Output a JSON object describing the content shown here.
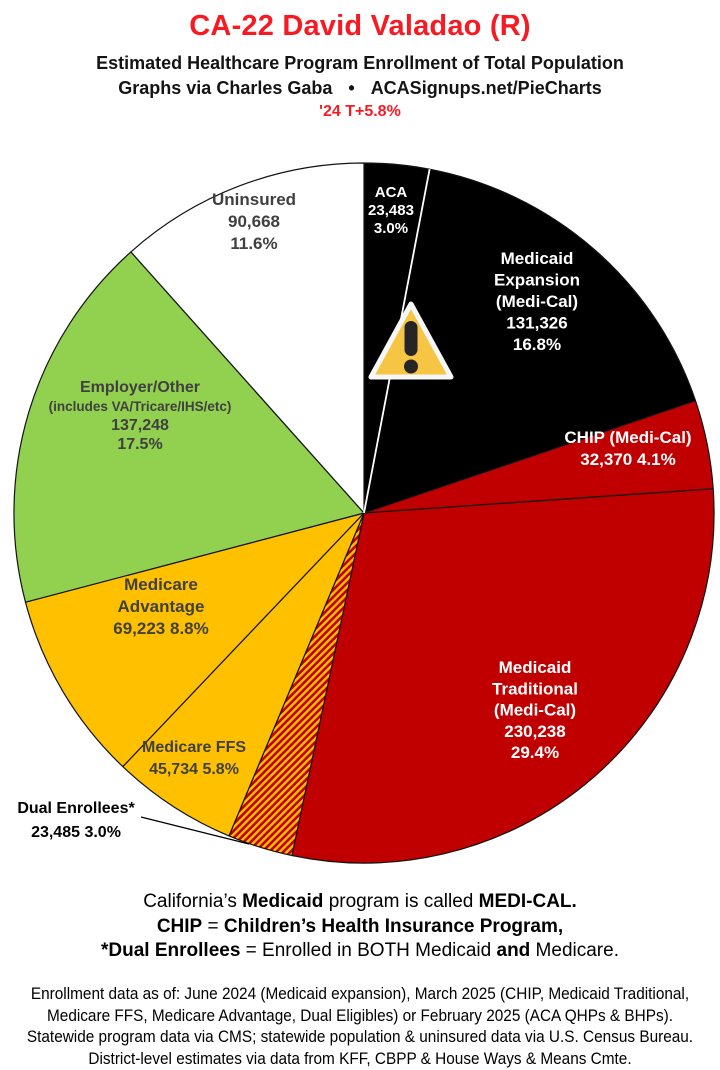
{
  "header": {
    "title": "CA-22 David Valadao (R)",
    "subtitle": "Estimated Healthcare Program Enrollment of Total Population",
    "byline_left": "Graphs via Charles Gaba",
    "byline_sep": "•",
    "byline_right": "ACASignups.net/PieCharts",
    "trend": "'24 T+5.8%"
  },
  "colors": {
    "accent_red": "#F71A22",
    "pie_red": "#C00000",
    "pie_gold": "#FFC000",
    "pie_green": "#92D050",
    "pie_black": "#000000",
    "pie_white": "#FFFFFF",
    "label_gray": "#404040",
    "warning_fill": "#F6C544"
  },
  "chart_data": {
    "type": "pie",
    "title": "Estimated Healthcare Program Enrollment of Total Population",
    "start_angle_deg": 0,
    "direction": "clockwise",
    "slices": [
      {
        "name": "ACA",
        "value": 23483,
        "value_display": "23,483",
        "pct": 3.0,
        "pct_display": "3.0%",
        "color": "#000000",
        "label_color": "#FFFFFF",
        "label_lines": [
          "ACA",
          "23,483",
          "3.0%"
        ]
      },
      {
        "name": "Medicaid Expansion (Medi-Cal)",
        "value": 131326,
        "value_display": "131,326",
        "pct": 16.8,
        "pct_display": "16.8%",
        "color": "#000000",
        "label_color": "#FFFFFF",
        "label_lines": [
          "Medicaid",
          "Expansion",
          "(Medi-Cal)",
          "131,326",
          "16.8%"
        ]
      },
      {
        "name": "CHIP (Medi-Cal)",
        "value": 32370,
        "value_display": "32,370",
        "pct": 4.1,
        "pct_display": "4.1%",
        "color": "#C00000",
        "label_color": "#FFFFFF",
        "label_lines": [
          "CHIP (Medi-Cal)",
          "32,370 4.1%"
        ]
      },
      {
        "name": "Medicaid Traditional (Medi-Cal)",
        "value": 230238,
        "value_display": "230,238",
        "pct": 29.4,
        "pct_display": "29.4%",
        "color": "#C00000",
        "label_color": "#FFFFFF",
        "label_lines": [
          "Medicaid",
          "Traditional",
          "(Medi-Cal)",
          "230,238",
          "29.4%"
        ]
      },
      {
        "name": "Dual Enrollees*",
        "value": 23485,
        "value_display": "23,485",
        "pct": 3.0,
        "pct_display": "3.0%",
        "color": "hatch",
        "hatch_colors": [
          "#C00000",
          "#FFC000"
        ],
        "label_color": "#000000",
        "label_lines": [
          "Dual Enrollees*",
          "23,485 3.0%"
        ],
        "label_outside": true
      },
      {
        "name": "Medicare FFS",
        "value": 45734,
        "value_display": "45,734",
        "pct": 5.8,
        "pct_display": "5.8%",
        "color": "#FFC000",
        "label_color": "#404040",
        "label_lines": [
          "Medicare FFS",
          "45,734 5.8%"
        ]
      },
      {
        "name": "Medicare Advantage",
        "value": 69223,
        "value_display": "69,223",
        "pct": 8.8,
        "pct_display": "8.8%",
        "color": "#FFC000",
        "label_color": "#404040",
        "label_lines": [
          "Medicare",
          "Advantage",
          "69,223 8.8%"
        ]
      },
      {
        "name": "Employer/Other (includes VA/Tricare/IHS/etc)",
        "value": 137248,
        "value_display": "137,248",
        "pct": 17.5,
        "pct_display": "17.5%",
        "color": "#92D050",
        "label_color": "#404040",
        "label_lines": [
          "Employer/Other",
          "(includes VA/Tricare/IHS/etc)",
          "137,248",
          "17.5%"
        ]
      },
      {
        "name": "Uninsured",
        "value": 90668,
        "value_display": "90,668",
        "pct": 11.6,
        "pct_display": "11.6%",
        "color": "#FFFFFF",
        "label_color": "#404040",
        "label_lines": [
          "Uninsured",
          "90,668",
          "11.6%"
        ]
      }
    ],
    "annotations": [
      {
        "type": "warning-icon",
        "on_slice": "Medicaid Expansion (Medi-Cal)"
      }
    ],
    "legend_position": "none",
    "grid": false
  },
  "legend_notes": [
    [
      {
        "t": "California’s ",
        "b": false
      },
      {
        "t": "Medicaid",
        "b": true
      },
      {
        "t": " program is called ",
        "b": false
      },
      {
        "t": "MEDI-CAL.",
        "b": true
      }
    ],
    [
      {
        "t": "CHIP",
        "b": true
      },
      {
        "t": " = ",
        "b": false
      },
      {
        "t": "Children’s Health Insurance Program,",
        "b": true
      }
    ],
    [
      {
        "t": "*Dual Enrollees",
        "b": true
      },
      {
        "t": " = Enrolled in BOTH Medicaid ",
        "b": false
      },
      {
        "t": "and",
        "b": true
      },
      {
        "t": " Medicare.",
        "b": false
      }
    ]
  ],
  "source_notes": [
    "Enrollment data as of: June 2024 (Medicaid expansion), March 2025 (CHIP, Medicaid Traditional,",
    "Medicare FFS, Medicare Advantage, Dual Eligibles) or February 2025 (ACA QHPs & BHPs).",
    "Statewide program data via CMS; statewide population & uninsured data via U.S. Census Bureau.",
    "District-level estimates via data from KFF, CBPP & House Ways & Means Cmte."
  ]
}
